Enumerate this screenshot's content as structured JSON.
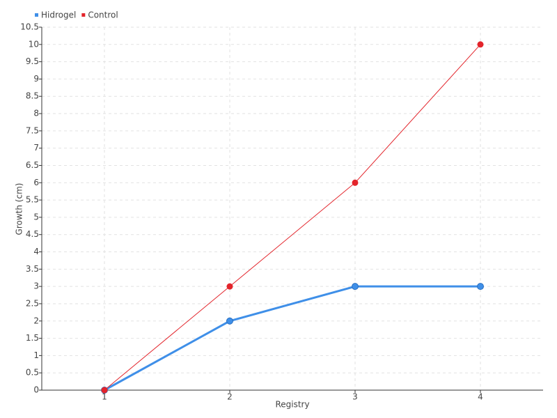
{
  "chart_data": {
    "type": "line",
    "x_label": "Registry",
    "y_label": "Growth (cm)",
    "categories": [
      "1",
      "2",
      "3",
      "4"
    ],
    "series": [
      {
        "name": "Hidrogel",
        "color": "#3f8fe8",
        "values": [
          0,
          2,
          3,
          3
        ]
      },
      {
        "name": "Control",
        "color": "#e3242b",
        "values": [
          0,
          3,
          6,
          10
        ]
      }
    ],
    "ylim": [
      0,
      10.5
    ],
    "yticks": [
      0,
      0.5,
      1,
      1.5,
      2,
      2.5,
      3,
      3.5,
      4,
      4.5,
      5,
      5.5,
      6,
      6.5,
      7,
      7.5,
      8,
      8.5,
      9,
      9.5,
      10,
      10.5
    ],
    "grid": true,
    "legend": "top-left"
  }
}
